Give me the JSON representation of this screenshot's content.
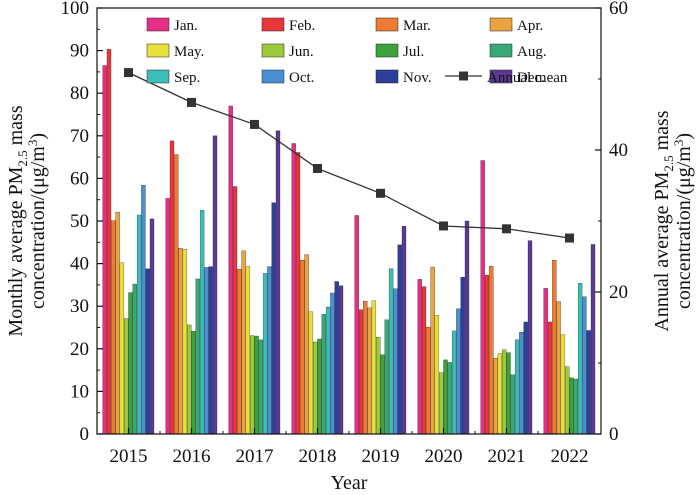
{
  "chart_data": {
    "type": "bar",
    "xlabel": "Year",
    "ylabel": "Monthly average PM2.5 mass concentration/(μg/m3)",
    "ylabel_lines": [
      {
        "pre": "Monthly average PM",
        "sub": "2.5",
        "post": " mass"
      },
      {
        "pre": "concentration/(μg/m",
        "sup": "3",
        "post": ")"
      }
    ],
    "y2label": "Annual average PM2.5 mass concentration/(μg/m3)",
    "y2label_lines": [
      {
        "pre": "Annual average PM",
        "sub": "2.5",
        "post": " mass"
      },
      {
        "pre": "concentration/(μg/m",
        "sup": "3",
        "post": ")"
      }
    ],
    "ylim": [
      0,
      100
    ],
    "yticks": [
      0,
      10,
      20,
      30,
      40,
      50,
      60,
      70,
      80,
      90,
      100
    ],
    "y2lim": [
      0,
      60
    ],
    "y2ticks": [
      0,
      20,
      40,
      60
    ],
    "categories": [
      "2015",
      "2016",
      "2017",
      "2018",
      "2019",
      "2020",
      "2021",
      "2022"
    ],
    "series": [
      {
        "name": "Jan.",
        "color": "#e62e86",
        "values": [
          86.5,
          55.3,
          77.0,
          68.2,
          51.3,
          36.3,
          64.2,
          34.2
        ]
      },
      {
        "name": "Feb.",
        "color": "#e8363a",
        "values": [
          90.3,
          68.8,
          58.1,
          66.1,
          29.2,
          34.6,
          37.3,
          26.3
        ]
      },
      {
        "name": "Mar.",
        "color": "#ee7b32",
        "values": [
          50.1,
          65.6,
          38.7,
          40.8,
          31.2,
          25.1,
          39.4,
          40.8
        ]
      },
      {
        "name": "Apr.",
        "color": "#eaa33e",
        "values": [
          52.1,
          43.6,
          43.0,
          42.1,
          29.6,
          39.2,
          17.8,
          31.1
        ]
      },
      {
        "name": "May.",
        "color": "#e8e13c",
        "values": [
          40.2,
          43.4,
          39.3,
          28.7,
          31.3,
          27.9,
          18.9,
          23.3
        ]
      },
      {
        "name": "Jun.",
        "color": "#9dc93c",
        "values": [
          27.1,
          25.6,
          23.1,
          21.6,
          22.7,
          14.4,
          19.8,
          15.8
        ]
      },
      {
        "name": "Jul.",
        "color": "#3ca23c",
        "values": [
          33.2,
          24.1,
          23.0,
          22.3,
          18.6,
          17.4,
          19.1,
          13.2
        ]
      },
      {
        "name": "Aug.",
        "color": "#3aa876",
        "values": [
          35.2,
          36.4,
          22.1,
          28.1,
          26.8,
          16.8,
          13.9,
          12.9
        ]
      },
      {
        "name": "Sep.",
        "color": "#3cbdb6",
        "values": [
          51.4,
          52.5,
          37.7,
          29.8,
          38.8,
          24.2,
          22.1,
          35.4
        ]
      },
      {
        "name": "Oct.",
        "color": "#4a8fd4",
        "values": [
          58.4,
          39.1,
          39.3,
          33.1,
          34.1,
          29.4,
          23.9,
          32.2
        ]
      },
      {
        "name": "Nov.",
        "color": "#2d3f9a",
        "values": [
          38.8,
          39.3,
          54.3,
          35.8,
          44.4,
          36.8,
          26.3,
          24.3
        ]
      },
      {
        "name": "Dec.",
        "color": "#5c3a94",
        "values": [
          50.5,
          70.0,
          71.2,
          34.8,
          48.8,
          50.0,
          45.4,
          44.5
        ]
      }
    ],
    "line_series": {
      "name": "Annual mean",
      "color": "#333333",
      "axis": "right",
      "values": [
        50.9,
        46.7,
        43.6,
        37.4,
        33.9,
        29.3,
        28.9,
        27.6
      ]
    },
    "legend": "top-right",
    "grid": false
  }
}
